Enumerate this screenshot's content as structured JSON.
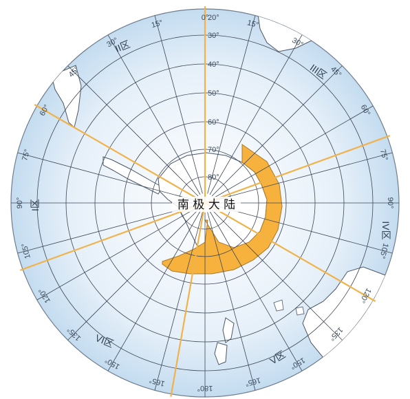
{
  "colors": {
    "ocean": "#cfe3f4",
    "ocean_rim": "#c4dcf0",
    "land": "#ffffff",
    "grid": "#3a4555",
    "zone_line": "#f0b24a",
    "highlight": "#f7b23d"
  },
  "map": {
    "title": "南 极 大 陆",
    "projection": "south-polar stereographic",
    "parallels": [
      "80°",
      "70°",
      "60°",
      "50°",
      "40°",
      "30°",
      "20°"
    ],
    "meridian_labels": [
      "15°",
      "30°",
      "45°",
      "60°",
      "75°",
      "90°",
      "105°",
      "120°",
      "135°",
      "150°",
      "165°",
      "180°",
      "165°",
      "150°",
      "135°",
      "120°",
      "105°",
      "90°",
      "75°",
      "60°",
      "45°",
      "30°",
      "15°",
      "0°"
    ],
    "zones": [
      "I区",
      "II区",
      "III区",
      "IV区",
      "V区",
      "VI区"
    ],
    "highlighted_region": "orange sector along Antarctic coast"
  }
}
